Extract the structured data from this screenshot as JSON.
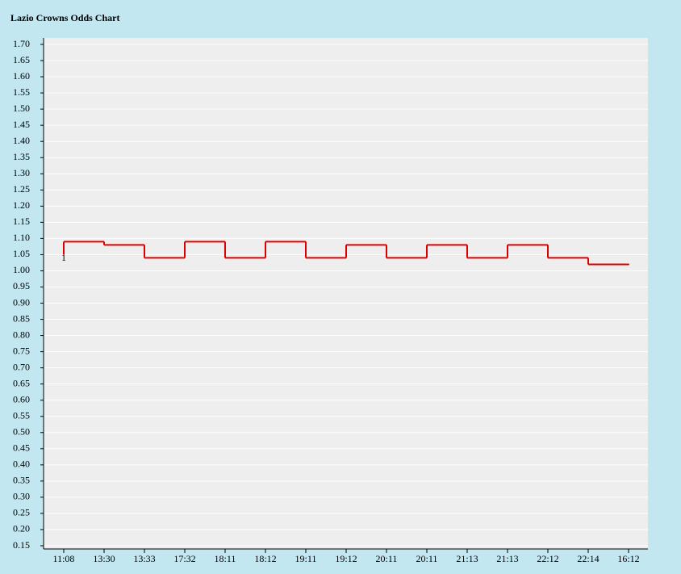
{
  "chart_data": {
    "type": "step",
    "title": "Lazio Crowns Odds Chart",
    "categories": [
      "11:08",
      "13:30",
      "13:33",
      "17:32",
      "18:11",
      "18:12",
      "19:11",
      "19:12",
      "20:11",
      "20:11",
      "21:13",
      "21:13",
      "22:12",
      "22:14",
      "16:12"
    ],
    "series": [
      {
        "name": "1",
        "color": "#dd0000",
        "values": [
          1.09,
          1.08,
          1.04,
          1.09,
          1.04,
          1.09,
          1.04,
          1.08,
          1.04,
          1.08,
          1.04,
          1.08,
          1.04,
          1.02,
          1.02
        ]
      }
    ],
    "ylim": [
      0.15,
      1.7
    ],
    "yticks": [
      0.15,
      {
        "value": 0.2,
        "label": "0.20"
      },
      0.25,
      {
        "value": 0.3,
        "label": "0.30"
      },
      0.35,
      {
        "value": 0.4,
        "label": "0.40"
      },
      0.45,
      {
        "value": 0.5,
        "label": "0.50"
      },
      0.55,
      {
        "value": 0.6,
        "label": "0.60"
      },
      0.65,
      {
        "value": 0.7,
        "label": "0.70"
      },
      0.75,
      {
        "value": 0.8,
        "label": "0.80"
      },
      0.85,
      {
        "value": 0.9,
        "label": "0.90"
      },
      0.95,
      {
        "value": 1.0,
        "label": "1.00"
      },
      1.05,
      {
        "value": 1.1,
        "label": "1.10"
      },
      1.15,
      {
        "value": 1.2,
        "label": "1.20"
      },
      1.25,
      {
        "value": 1.3,
        "label": "1.30"
      },
      1.35,
      {
        "value": 1.4,
        "label": "1.40"
      },
      1.45,
      {
        "value": 1.5,
        "label": "1.50"
      },
      1.55,
      {
        "value": 1.6,
        "label": "1.60"
      },
      1.65,
      {
        "value": 1.7,
        "label": "1.70"
      }
    ],
    "grid": true
  }
}
